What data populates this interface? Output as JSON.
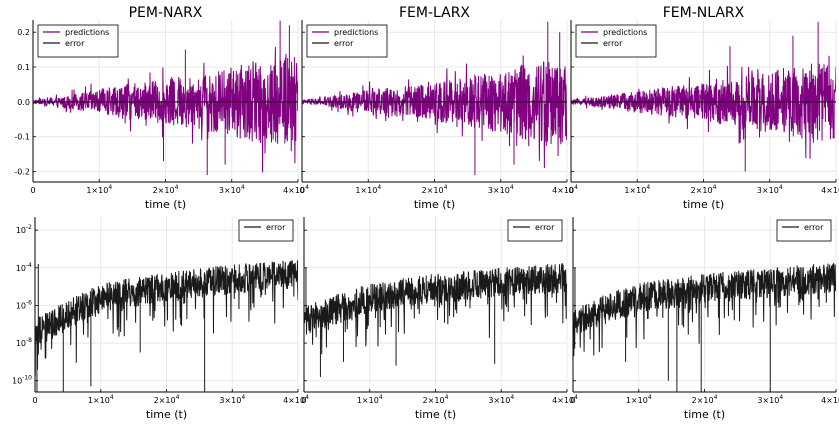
{
  "chart_data": [
    {
      "type": "line",
      "title": "PEM-NARX",
      "xlabel": "time (t)",
      "ylabel": "",
      "xlim": [
        0,
        40000
      ],
      "ylim": [
        -0.23,
        0.235
      ],
      "xticks": [
        {
          "v": 0,
          "b": "0"
        },
        {
          "v": 10000,
          "b": "1×10",
          "e": "4"
        },
        {
          "v": 20000,
          "b": "2×10",
          "e": "4"
        },
        {
          "v": 30000,
          "b": "3×10",
          "e": "4"
        },
        {
          "v": 40000,
          "b": "4×10",
          "e": "4"
        }
      ],
      "yticks": [
        {
          "v": -0.2,
          "b": "-0.2"
        },
        {
          "v": -0.1,
          "b": "-0.1"
        },
        {
          "v": 0,
          "b": "0.0"
        },
        {
          "v": 0.1,
          "b": "0.1"
        },
        {
          "v": 0.2,
          "b": "0.2"
        }
      ],
      "legend_position": "top-left",
      "grid": true,
      "series": [
        {
          "name": "predictions",
          "color": "#800080",
          "envelope": [
            [
              0,
              0.006
            ],
            [
              5000,
              0.02
            ],
            [
              10000,
              0.04
            ],
            [
              15000,
              0.06
            ],
            [
              20000,
              0.07
            ],
            [
              25000,
              0.09
            ],
            [
              30000,
              0.11
            ],
            [
              35000,
              0.14
            ],
            [
              40000,
              0.15
            ]
          ],
          "spikes": [
            [
              19700,
              -0.17
            ],
            [
              26300,
              -0.21
            ],
            [
              37300,
              0.233
            ],
            [
              38700,
              0.22
            ],
            [
              23000,
              0.15
            ],
            [
              29000,
              -0.18
            ]
          ]
        },
        {
          "name": "error",
          "color": "#1a1a1a",
          "values": [
            0,
            0
          ]
        }
      ]
    },
    {
      "type": "line",
      "title": "FEM-LARX",
      "xlabel": "time (t)",
      "ylabel": "",
      "xlim": [
        0,
        40000
      ],
      "ylim": [
        -0.23,
        0.235
      ],
      "xticks": [
        {
          "v": 0,
          "b": "0"
        },
        {
          "v": 10000,
          "b": "1×10",
          "e": "4"
        },
        {
          "v": 20000,
          "b": "2×10",
          "e": "4"
        },
        {
          "v": 30000,
          "b": "3×10",
          "e": "4"
        },
        {
          "v": 40000,
          "b": "4×10",
          "e": "4"
        }
      ],
      "yticks": [
        {
          "v": -0.2
        },
        {
          "v": -0.1
        },
        {
          "v": 0
        },
        {
          "v": 0.1
        },
        {
          "v": 0.2
        }
      ],
      "legend_position": "top-left",
      "grid": true,
      "series": [
        {
          "name": "predictions",
          "color": "#800080",
          "envelope": [
            [
              0,
              0.006
            ],
            [
              5000,
              0.02
            ],
            [
              10000,
              0.04
            ],
            [
              15000,
              0.05
            ],
            [
              20000,
              0.06
            ],
            [
              25000,
              0.08
            ],
            [
              30000,
              0.1
            ],
            [
              35000,
              0.13
            ],
            [
              40000,
              0.14
            ]
          ],
          "spikes": [
            [
              26100,
              -0.21
            ],
            [
              37100,
              0.23
            ],
            [
              38900,
              0.2
            ],
            [
              32000,
              -0.18
            ]
          ]
        },
        {
          "name": "error",
          "color": "#1a1a1a",
          "values": [
            0,
            0
          ]
        }
      ]
    },
    {
      "type": "line",
      "title": "FEM-NLARX",
      "xlabel": "time (t)",
      "ylabel": "",
      "xlim": [
        0,
        40000
      ],
      "ylim": [
        -0.23,
        0.235
      ],
      "xticks": [
        {
          "v": 0,
          "b": "0"
        },
        {
          "v": 10000,
          "b": "1×10",
          "e": "4"
        },
        {
          "v": 20000,
          "b": "2×10",
          "e": "4"
        },
        {
          "v": 30000,
          "b": "3×10",
          "e": "4"
        },
        {
          "v": 40000,
          "b": "4×10",
          "e": "4"
        }
      ],
      "yticks": [
        {
          "v": -0.2
        },
        {
          "v": -0.1
        },
        {
          "v": 0
        },
        {
          "v": 0.1
        },
        {
          "v": 0.2
        }
      ],
      "legend_position": "top-left",
      "grid": true,
      "series": [
        {
          "name": "predictions",
          "color": "#800080",
          "envelope": [
            [
              0,
              0.006
            ],
            [
              5000,
              0.02
            ],
            [
              10000,
              0.035
            ],
            [
              15000,
              0.05
            ],
            [
              20000,
              0.06
            ],
            [
              25000,
              0.08
            ],
            [
              30000,
              0.1
            ],
            [
              35000,
              0.12
            ],
            [
              40000,
              0.13
            ]
          ],
          "spikes": [
            [
              26300,
              -0.2
            ],
            [
              37300,
              0.23
            ],
            [
              33500,
              0.19
            ],
            [
              24000,
              0.16
            ]
          ]
        },
        {
          "name": "error",
          "color": "#1a1a1a",
          "values": [
            0,
            0
          ]
        }
      ]
    },
    {
      "type": "line",
      "title": "",
      "xlabel": "time (t)",
      "ylabel": "",
      "yscale": "log",
      "xlim": [
        0,
        40000
      ],
      "ylim_log10": [
        -10.6,
        -1.3
      ],
      "xticks": [
        {
          "v": 0,
          "b": "0"
        },
        {
          "v": 10000,
          "b": "1×10",
          "e": "4"
        },
        {
          "v": 20000,
          "b": "2×10",
          "e": "4"
        },
        {
          "v": 30000,
          "b": "3×10",
          "e": "4"
        },
        {
          "v": 40000,
          "b": "4×10",
          "e": "4"
        }
      ],
      "yticks": [
        {
          "v": -10,
          "b": "10",
          "e": "-10"
        },
        {
          "v": -8,
          "b": "10",
          "e": "-8"
        },
        {
          "v": -6,
          "b": "10",
          "e": "-6"
        },
        {
          "v": -4,
          "b": "10",
          "e": "-4"
        },
        {
          "v": -2,
          "b": "10",
          "e": "-2"
        }
      ],
      "legend_position": "top-right",
      "grid": true,
      "series": [
        {
          "name": "error",
          "color": "#1a1a1a",
          "median_log10": [
            [
              0,
              -7.5
            ],
            [
              5000,
              -6.5
            ],
            [
              10000,
              -5.6
            ],
            [
              20000,
              -5.0
            ],
            [
              30000,
              -4.6
            ],
            [
              40000,
              -4.3
            ]
          ],
          "spikes": [
            [
              300,
              -10.6
            ],
            [
              500,
              -3.8
            ],
            [
              4300,
              -10.6
            ],
            [
              8500,
              -10.3
            ],
            [
              25800,
              -10.6
            ],
            [
              16000,
              -8.5
            ]
          ]
        }
      ]
    },
    {
      "type": "line",
      "title": "",
      "xlabel": "time (t)",
      "ylabel": "",
      "yscale": "log",
      "xlim": [
        0,
        40000
      ],
      "ylim_log10": [
        -10.6,
        -1.3
      ],
      "xticks": [
        {
          "v": 0,
          "b": "0"
        },
        {
          "v": 10000,
          "b": "1×10",
          "e": "4"
        },
        {
          "v": 20000,
          "b": "2×10",
          "e": "4"
        },
        {
          "v": 30000,
          "b": "3×10",
          "e": "4"
        },
        {
          "v": 40000,
          "b": "4×10",
          "e": "4"
        }
      ],
      "yticks": [
        {
          "v": -10
        },
        {
          "v": -8
        },
        {
          "v": -6
        },
        {
          "v": -4
        },
        {
          "v": -2
        }
      ],
      "legend_position": "top-right",
      "grid": true,
      "series": [
        {
          "name": "error",
          "color": "#1a1a1a",
          "median_log10": [
            [
              0,
              -6.8
            ],
            [
              10000,
              -5.6
            ],
            [
              20000,
              -5.1
            ],
            [
              30000,
              -4.8
            ],
            [
              40000,
              -4.5
            ]
          ],
          "spikes": [
            [
              300,
              -4.0
            ],
            [
              2500,
              -9.8
            ],
            [
              29000,
              -9.1
            ],
            [
              14000,
              -9.2
            ],
            [
              6000,
              -9.0
            ]
          ]
        }
      ]
    },
    {
      "type": "line",
      "title": "",
      "xlabel": "time (t)",
      "ylabel": "",
      "yscale": "log",
      "xlim": [
        0,
        40000
      ],
      "ylim_log10": [
        -10.6,
        -1.3
      ],
      "xticks": [
        {
          "v": 0,
          "b": "0"
        },
        {
          "v": 10000,
          "b": "1×10",
          "e": "4"
        },
        {
          "v": 20000,
          "b": "2×10",
          "e": "4"
        },
        {
          "v": 30000,
          "b": "3×10",
          "e": "4"
        },
        {
          "v": 40000,
          "b": "4×10",
          "e": "4"
        }
      ],
      "yticks": [
        {
          "v": -10
        },
        {
          "v": -8
        },
        {
          "v": -6
        },
        {
          "v": -4
        },
        {
          "v": -2
        }
      ],
      "legend_position": "top-right",
      "grid": true,
      "series": [
        {
          "name": "error",
          "color": "#1a1a1a",
          "median_log10": [
            [
              0,
              -6.8
            ],
            [
              10000,
              -5.6
            ],
            [
              20000,
              -5.1
            ],
            [
              30000,
              -4.8
            ],
            [
              40000,
              -4.5
            ]
          ],
          "spikes": [
            [
              300,
              -4.0
            ],
            [
              15800,
              -10.6
            ],
            [
              19500,
              -10.6
            ],
            [
              30000,
              -10.6
            ],
            [
              14500,
              -10.0
            ],
            [
              8000,
              -9.0
            ]
          ]
        }
      ]
    }
  ]
}
